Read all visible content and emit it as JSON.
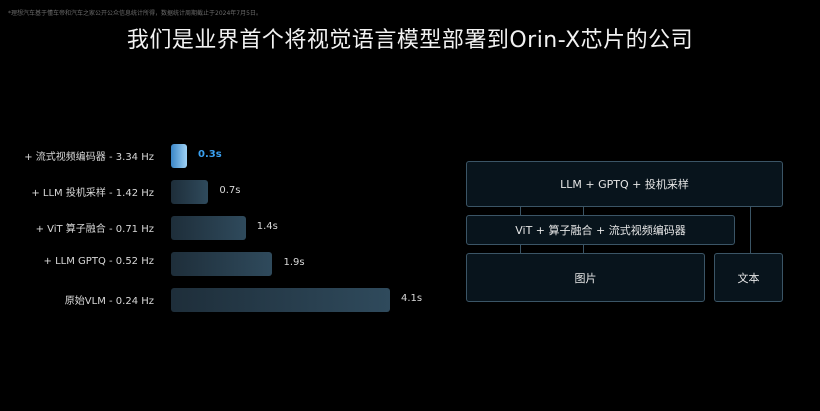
{
  "footnote": "*理想汽车基于懂车帝和汽车之家公开公众信息统计所得，数据统计周期截止于2024年7月5日。",
  "title": "我们是业界首个将视觉语言模型部署到Orin-X芯片的公司",
  "chart_data": {
    "type": "bar",
    "orientation": "horizontal",
    "categories": [
      "+ 流式视频编码器 - 3.34 Hz",
      "+ LLM 投机采样 - 1.42 Hz",
      "+ ViT 算子融合 - 0.71 Hz",
      "+ LLM GPTQ - 0.52 Hz",
      "原始VLM - 0.24 Hz"
    ],
    "values": [
      0.3,
      0.7,
      1.4,
      1.9,
      4.1
    ],
    "value_labels": [
      "0.3s",
      "0.7s",
      "1.4s",
      "1.9s",
      "4.1s"
    ],
    "highlight_index": 0,
    "xlim": [
      0,
      4.1
    ],
    "title": "",
    "xlabel": "",
    "ylabel": "",
    "grid": false,
    "colors": {
      "highlight": "#3aa0f0",
      "bar": "#2f4a5c"
    }
  },
  "diagram": {
    "box_top": "LLM + GPTQ + 投机采样",
    "box_middle": "ViT + 算子融合 + 流式视频编码器",
    "box_image": "图片",
    "box_text": "文本"
  }
}
